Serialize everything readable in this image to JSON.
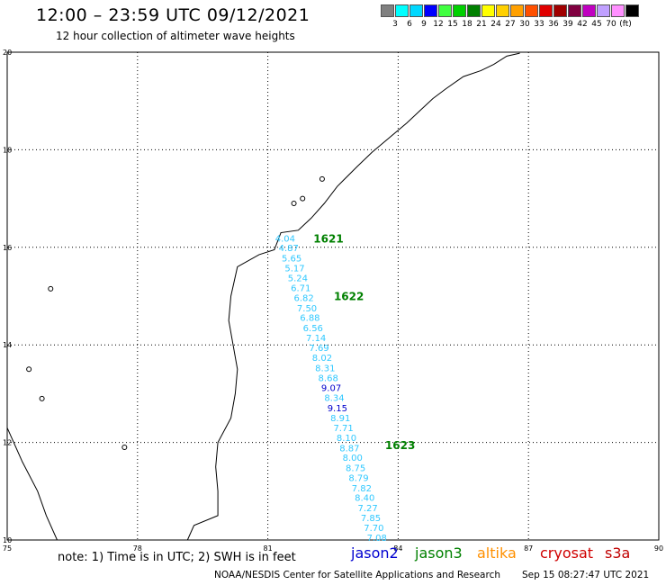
{
  "header": {
    "title": "12:00 – 23:59 UTC 09/12/2021",
    "subtitle": "12 hour collection of altimeter wave heights"
  },
  "colorbar": {
    "colors": [
      "#808080",
      "#00ffff",
      "#00d8ff",
      "#0000ff",
      "#40ff40",
      "#00d000",
      "#008000",
      "#ffff00",
      "#ffd000",
      "#ffa000",
      "#ff5000",
      "#e00000",
      "#a00000",
      "#800040",
      "#c000c0",
      "#c0a0ff",
      "#ff90ff",
      "#000000"
    ],
    "labels": [
      "3",
      "6",
      "9",
      "12",
      "15",
      "18",
      "21",
      "24",
      "27",
      "30",
      "33",
      "36",
      "39",
      "42",
      "45",
      "70",
      "(ft)"
    ]
  },
  "map": {
    "lat_range": [
      10,
      20
    ],
    "lon_range": [
      75,
      90
    ],
    "lat_ticks": [
      "10",
      "12",
      "14",
      "16",
      "18",
      "20"
    ],
    "lon_ticks": [
      "75",
      "78",
      "81",
      "84",
      "87",
      "90"
    ],
    "grid": "dotted"
  },
  "chart_data": {
    "type": "scatter",
    "title": "12 hour collection of altimeter wave heights",
    "units": "ft",
    "track_points": [
      {
        "lat": 16.12,
        "lon": 81.4,
        "swh": "4.04",
        "sat": "jason2",
        "color": "#30c8ff"
      },
      {
        "lat": 15.92,
        "lon": 81.48,
        "swh": "4.87",
        "sat": "jason2",
        "color": "#30c8ff"
      },
      {
        "lat": 15.71,
        "lon": 81.55,
        "swh": "5.65",
        "sat": "jason2",
        "color": "#30c8ff"
      },
      {
        "lat": 15.51,
        "lon": 81.62,
        "swh": "5.17",
        "sat": "jason2",
        "color": "#30c8ff"
      },
      {
        "lat": 15.3,
        "lon": 81.69,
        "swh": "5.24",
        "sat": "jason2",
        "color": "#30c8ff"
      },
      {
        "lat": 15.1,
        "lon": 81.76,
        "swh": "6.71",
        "sat": "jason2",
        "color": "#30c8ff"
      },
      {
        "lat": 14.9,
        "lon": 81.83,
        "swh": "6.82",
        "sat": "jason2",
        "color": "#30c8ff"
      },
      {
        "lat": 14.69,
        "lon": 81.9,
        "swh": "7.50",
        "sat": "jason2",
        "color": "#30c8ff"
      },
      {
        "lat": 14.49,
        "lon": 81.97,
        "swh": "6.88",
        "sat": "jason2",
        "color": "#30c8ff"
      },
      {
        "lat": 14.28,
        "lon": 82.04,
        "swh": "6.56",
        "sat": "jason2",
        "color": "#30c8ff"
      },
      {
        "lat": 14.08,
        "lon": 82.11,
        "swh": "7.14",
        "sat": "jason2",
        "color": "#30c8ff"
      },
      {
        "lat": 13.87,
        "lon": 82.18,
        "swh": "7.69",
        "sat": "jason2",
        "color": "#30c8ff"
      },
      {
        "lat": 13.67,
        "lon": 82.25,
        "swh": "8.02",
        "sat": "jason2",
        "color": "#30c8ff"
      },
      {
        "lat": 13.46,
        "lon": 82.32,
        "swh": "8.31",
        "sat": "jason2",
        "color": "#30c8ff"
      },
      {
        "lat": 13.26,
        "lon": 82.39,
        "swh": "8.68",
        "sat": "jason2",
        "color": "#30c8ff"
      },
      {
        "lat": 13.05,
        "lon": 82.46,
        "swh": "9.07",
        "sat": "jason2",
        "color": "#0000cc"
      },
      {
        "lat": 12.85,
        "lon": 82.53,
        "swh": "8.34",
        "sat": "jason2",
        "color": "#30c8ff"
      },
      {
        "lat": 12.64,
        "lon": 82.6,
        "swh": "9.15",
        "sat": "jason2",
        "color": "#0000cc"
      },
      {
        "lat": 12.44,
        "lon": 82.67,
        "swh": "8.91",
        "sat": "jason2",
        "color": "#30c8ff"
      },
      {
        "lat": 12.23,
        "lon": 82.74,
        "swh": "7.71",
        "sat": "jason2",
        "color": "#30c8ff"
      },
      {
        "lat": 12.03,
        "lon": 82.81,
        "swh": "8.10",
        "sat": "jason2",
        "color": "#30c8ff"
      },
      {
        "lat": 11.82,
        "lon": 82.88,
        "swh": "8.87",
        "sat": "jason2",
        "color": "#30c8ff"
      },
      {
        "lat": 11.62,
        "lon": 82.95,
        "swh": "8.00",
        "sat": "jason2",
        "color": "#30c8ff"
      },
      {
        "lat": 11.41,
        "lon": 83.02,
        "swh": "8.75",
        "sat": "jason2",
        "color": "#30c8ff"
      },
      {
        "lat": 11.21,
        "lon": 83.09,
        "swh": "8.79",
        "sat": "jason2",
        "color": "#30c8ff"
      },
      {
        "lat": 11.0,
        "lon": 83.16,
        "swh": "7.82",
        "sat": "jason2",
        "color": "#30c8ff"
      },
      {
        "lat": 10.8,
        "lon": 83.23,
        "swh": "8.40",
        "sat": "jason2",
        "color": "#30c8ff"
      },
      {
        "lat": 10.59,
        "lon": 83.3,
        "swh": "7.27",
        "sat": "jason2",
        "color": "#30c8ff"
      },
      {
        "lat": 10.39,
        "lon": 83.37,
        "swh": "7.85",
        "sat": "jason2",
        "color": "#30c8ff"
      },
      {
        "lat": 10.18,
        "lon": 83.44,
        "swh": "7.70",
        "sat": "jason2",
        "color": "#30c8ff"
      },
      {
        "lat": 9.98,
        "lon": 83.51,
        "swh": "7.08",
        "sat": "jason2",
        "color": "#30c8ff"
      }
    ],
    "time_labels": [
      {
        "lat": 16.1,
        "lon": 82.05,
        "text": "1621"
      },
      {
        "lat": 14.92,
        "lon": 82.52,
        "text": "1622"
      },
      {
        "lat": 11.86,
        "lon": 83.7,
        "text": "1623"
      }
    ]
  },
  "footer": {
    "note": "note: 1) Time is in UTC; 2) SWH is in feet",
    "credit": "NOAA/NESDIS Center for Satellite Applications and Research",
    "timestamp": "Sep 15 08:27:47 UTC 2021"
  },
  "legend": [
    {
      "name": "jason2",
      "color": "#0000d0"
    },
    {
      "name": "jason3",
      "color": "#008000"
    },
    {
      "name": "altika",
      "color": "#ff9000"
    },
    {
      "name": "cryosat",
      "color": "#d00000"
    },
    {
      "name": "s3a",
      "color": "#c00000"
    }
  ]
}
